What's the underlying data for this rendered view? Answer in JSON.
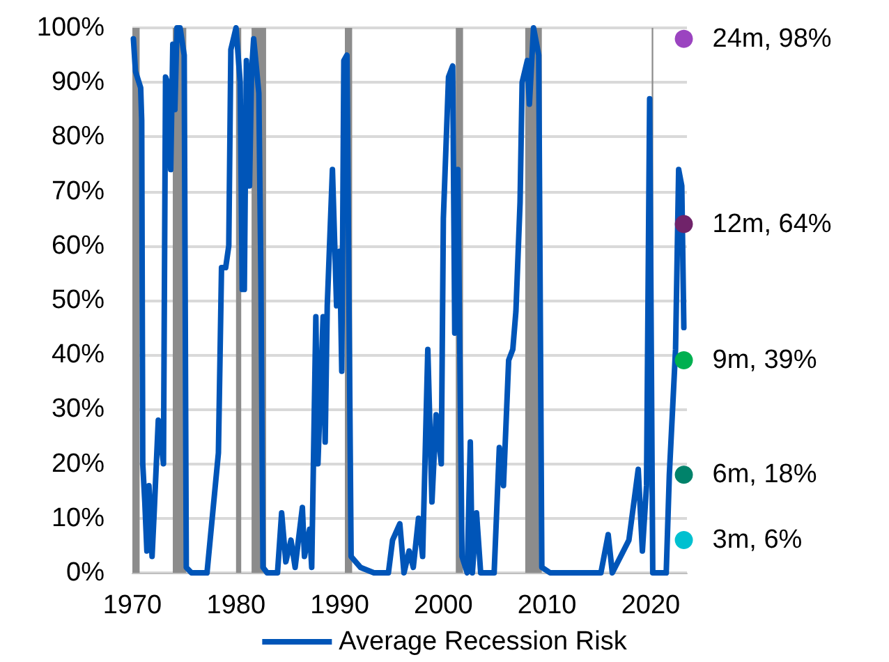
{
  "chart_data": {
    "type": "line",
    "xlim": [
      1970,
      2023.5
    ],
    "xticks": [
      1970,
      1980,
      1990,
      2000,
      2010,
      2020
    ],
    "ylim": [
      0,
      100
    ],
    "yticks": [
      {
        "value": 0,
        "label": "0%"
      },
      {
        "value": 10,
        "label": "10%"
      },
      {
        "value": 20,
        "label": "20%"
      },
      {
        "value": 30,
        "label": "30%"
      },
      {
        "value": 40,
        "label": "40%"
      },
      {
        "value": 50,
        "label": "50%"
      },
      {
        "value": 60,
        "label": "60%"
      },
      {
        "value": 70,
        "label": "70%"
      },
      {
        "value": 80,
        "label": "80%"
      },
      {
        "value": 90,
        "label": "90%"
      },
      {
        "value": 100,
        "label": "100%"
      }
    ],
    "grid": "y",
    "legend": "bottom",
    "line_style": "solid",
    "bands": [
      {
        "axis": "x",
        "from": 1969.9,
        "to": 1970.7,
        "color": "#8c8c8c"
      },
      {
        "axis": "x",
        "from": 1973.9,
        "to": 1975.2,
        "color": "#8c8c8c"
      },
      {
        "axis": "x",
        "from": 1980.0,
        "to": 1980.5,
        "color": "#8c8c8c"
      },
      {
        "axis": "x",
        "from": 1981.5,
        "to": 1982.9,
        "color": "#8c8c8c"
      },
      {
        "axis": "x",
        "from": 1990.5,
        "to": 1991.2,
        "color": "#8c8c8c"
      },
      {
        "axis": "x",
        "from": 2001.2,
        "to": 2001.9,
        "color": "#8c8c8c"
      },
      {
        "axis": "x",
        "from": 2007.9,
        "to": 2009.5,
        "color": "#8c8c8c"
      },
      {
        "axis": "x",
        "from": 2020.1,
        "to": 2020.25,
        "color": "#8c8c8c"
      }
    ],
    "series": [
      {
        "name": "Average Recession Risk",
        "color": "#0055b8",
        "marker": "none",
        "x": [
          1970.1,
          1970.3,
          1970.8,
          1970.9,
          1971.0,
          1971.2,
          1971.4,
          1971.6,
          1971.9,
          1972.1,
          1972.5,
          1973.0,
          1973.2,
          1973.4,
          1973.7,
          1973.9,
          1974.1,
          1974.3,
          1974.6,
          1975.0,
          1975.2,
          1975.7,
          1977.2,
          1977.5,
          1977.9,
          1978.3,
          1978.6,
          1979.0,
          1979.3,
          1979.5,
          1980.0,
          1980.4,
          1980.6,
          1980.8,
          1981.0,
          1981.3,
          1981.5,
          1981.7,
          1982.2,
          1982.4,
          1982.6,
          1983.0,
          1984.0,
          1984.4,
          1984.8,
          1985.3,
          1985.7,
          1986.4,
          1986.6,
          1987.1,
          1987.3,
          1987.7,
          1987.9,
          1988.4,
          1988.6,
          1988.8,
          1989.3,
          1989.7,
          1990.0,
          1990.2,
          1990.4,
          1990.7,
          1991.1,
          1992.0,
          1993.3,
          1994.7,
          1995.1,
          1995.8,
          1996.2,
          1996.7,
          1997.1,
          1997.6,
          1998.0,
          1998.5,
          1998.9,
          1999.3,
          1999.8,
          2000.0,
          2000.5,
          2000.9,
          2001.1,
          2001.4,
          2001.8,
          2002.3,
          2002.6,
          2002.8,
          2003.2,
          2003.6,
          2004.9,
          2005.4,
          2005.8,
          2006.3,
          2006.7,
          2007.0,
          2007.4,
          2007.6,
          2008.1,
          2008.3,
          2008.7,
          2009.2,
          2009.5,
          2010.3,
          2015.2,
          2015.9,
          2016.3,
          2017.9,
          2018.8,
          2019.2,
          2019.6,
          2019.9,
          2020.2,
          2021.5,
          2021.8,
          2022.4,
          2022.7,
          2023.0,
          2023.2
        ],
        "values": [
          98,
          92,
          89,
          83,
          20,
          13,
          4,
          16,
          3,
          11,
          28,
          20,
          91,
          90,
          74,
          97,
          85,
          100,
          100,
          95,
          1,
          0,
          0,
          6,
          14,
          22,
          56,
          56,
          60,
          96,
          100,
          90,
          52,
          52,
          94,
          71,
          92,
          98,
          88,
          54,
          1,
          0,
          0,
          11,
          2,
          6,
          1,
          12,
          3,
          8,
          1,
          47,
          20,
          47,
          24,
          49,
          74,
          49,
          59,
          37,
          94,
          95,
          3,
          1,
          0,
          0,
          6,
          9,
          0,
          4,
          1,
          10,
          3,
          41,
          13,
          29,
          20,
          65,
          91,
          93,
          44,
          74,
          3,
          0,
          24,
          0,
          11,
          0,
          0,
          23,
          16,
          39,
          41,
          48,
          68,
          90,
          94,
          86,
          100,
          95,
          1,
          0,
          0,
          7,
          0,
          6,
          19,
          4,
          16,
          87,
          0,
          0,
          18,
          41,
          74,
          71,
          45
        ]
      },
      {
        "type": "scatter",
        "marker": "circle",
        "x": [
          2023.2,
          2023.2,
          2023.2,
          2023.2,
          2023.2
        ],
        "values": [
          98,
          64,
          39,
          18,
          6
        ],
        "colors": [
          "#9b44c0",
          "#70236a",
          "#00b050",
          "#00826a",
          "#00c0d0"
        ],
        "value_labels": [
          "24m, 98%",
          "12m, 64%",
          "9m, 39%",
          "6m, 18%",
          "3m, 6%"
        ]
      }
    ]
  }
}
